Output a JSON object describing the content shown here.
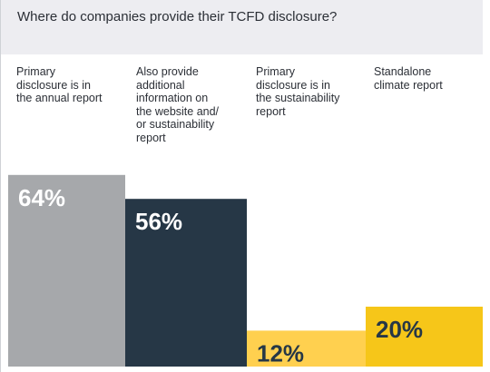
{
  "chart_data": {
    "type": "bar",
    "title": "Where do companies provide their TCFD disclosure?",
    "categories": [
      "Primary\ndisclosure is in\nthe annual report",
      "Also provide\nadditional\ninformation on\nthe website and/\nor sustainability\nreport",
      "Primary\ndisclosure is in\nthe sustainability\nreport",
      "Standalone\nclimate report"
    ],
    "values": [
      64,
      56,
      12,
      20
    ],
    "value_labels": [
      "64%",
      "56%",
      "12%",
      "20%"
    ],
    "unit": "%",
    "ylim": [
      0,
      100
    ],
    "colors": [
      "#a6a8ab",
      "#263746",
      "#ffd04f",
      "#f6c619"
    ],
    "label_colors": [
      "#ffffff",
      "#ffffff",
      "#263746",
      "#263746"
    ],
    "grid": false,
    "legend": "none"
  }
}
